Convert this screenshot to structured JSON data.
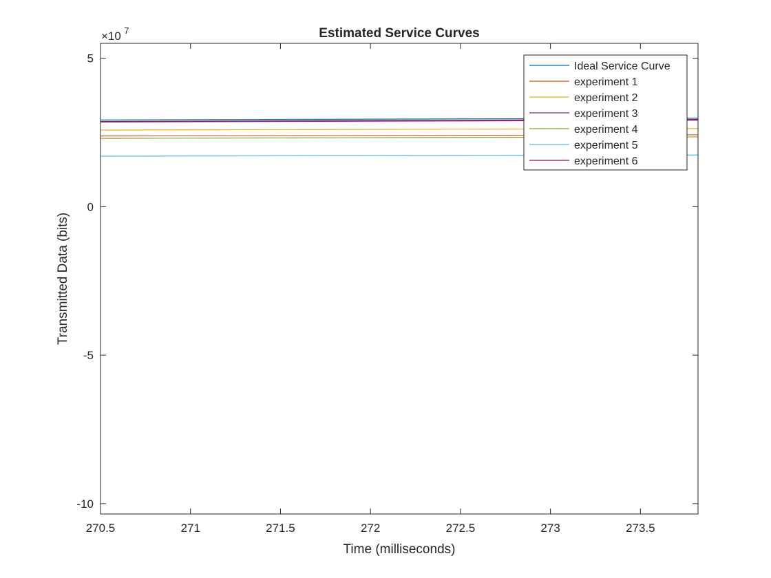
{
  "chart_data": {
    "type": "line",
    "title": "Estimated Service Curves",
    "xlabel": "Time (milliseconds)",
    "ylabel": "Transmitted Data (bits)",
    "y_exponent_base": "×10",
    "y_exponent_power": "7",
    "xlim": [
      270.5,
      273.82
    ],
    "ylim": [
      -10.35,
      5.5
    ],
    "x_scale_note": "y values are in units of 1e7 bits",
    "xticks": [
      270.5,
      271,
      271.5,
      272,
      272.5,
      273,
      273.5
    ],
    "xtick_labels": [
      "270.5",
      "271",
      "271.5",
      "272",
      "272.5",
      "273",
      "273.5"
    ],
    "yticks": [
      5,
      0,
      -5,
      -10
    ],
    "ytick_labels": [
      "5",
      "0",
      "-5",
      "-10"
    ],
    "grid": false,
    "legend_position": "top-right",
    "series": [
      {
        "name": "Ideal Service Curve",
        "color": "#0072bd",
        "x": [
          270.5,
          273.82
        ],
        "y": [
          2.92,
          2.98
        ]
      },
      {
        "name": "experiment 1",
        "color": "#d95319",
        "x": [
          270.5,
          273.82
        ],
        "y": [
          2.38,
          2.42
        ]
      },
      {
        "name": "experiment 2",
        "color": "#edb120",
        "x": [
          270.5,
          273.82
        ],
        "y": [
          2.58,
          2.63
        ]
      },
      {
        "name": "experiment 3",
        "color": "#7e2f8e",
        "x": [
          270.5,
          273.82
        ],
        "y": [
          2.85,
          2.91
        ]
      },
      {
        "name": "experiment 4",
        "color": "#77ac30",
        "x": [
          270.5,
          273.82
        ],
        "y": [
          2.3,
          2.35
        ]
      },
      {
        "name": "experiment 5",
        "color": "#4dbeee",
        "x": [
          270.5,
          273.82
        ],
        "y": [
          1.7,
          1.74
        ]
      },
      {
        "name": "experiment 6",
        "color": "#a2142f",
        "x": [
          270.5,
          273.82
        ],
        "y": [
          2.87,
          2.94
        ]
      }
    ]
  }
}
